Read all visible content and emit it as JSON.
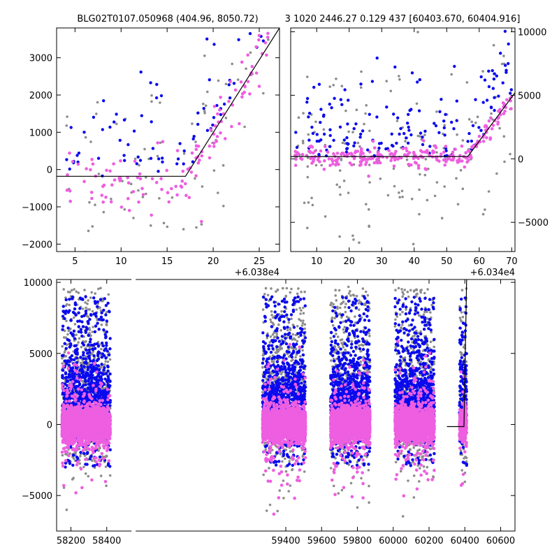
{
  "figure": {
    "title_left": "BLG02T0107.050968 (404.96, 8050.72)",
    "title_right": "3 1020 2446.27 0.129 437 [60403.670, 60404.916]"
  },
  "colors": {
    "grey": "#8c8c8c",
    "blue": "#0a0aee",
    "magenta": "#ee5ee0",
    "fit": "#000000"
  },
  "chart_data": [
    {
      "id": "top-left",
      "type": "scatter",
      "x_offset_label": "+6.038e4",
      "xlim": [
        3,
        27.2
      ],
      "ylim": [
        -2200,
        3800
      ],
      "xticks": [
        5,
        10,
        15,
        20,
        25
      ],
      "yticks": [
        -2000,
        -1000,
        0,
        1000,
        2000,
        3000
      ],
      "fit_line": {
        "x": [
          3,
          17,
          27.2
        ],
        "y": [
          -180,
          -180,
          3800
        ]
      }
    },
    {
      "id": "top-right",
      "type": "scatter",
      "x_offset_label": "+6.034e4",
      "xlim": [
        2,
        71
      ],
      "ylim": [
        -7300,
        10300
      ],
      "xticks": [
        10,
        20,
        30,
        40,
        50,
        60,
        70
      ],
      "yticks": [
        -5000,
        0,
        5000,
        10000
      ],
      "yaxis_side": "right",
      "fit_line": {
        "x": [
          2,
          56.5,
          71
        ],
        "y": [
          180,
          180,
          5200
        ]
      }
    },
    {
      "id": "bottom",
      "type": "scatter",
      "xlim": [
        58120,
        60680
      ],
      "ylim": [
        -7500,
        10200
      ],
      "xticks": [
        58200,
        58400,
        59400,
        59600,
        59800,
        60000,
        60200,
        60400,
        60600
      ],
      "yticks": [
        -5000,
        0,
        5000,
        10000
      ],
      "axis_break_at_x": 58550,
      "seasons": [
        {
          "x_range": [
            58150,
            58420
          ]
        },
        {
          "x_range": [
            59270,
            59510
          ]
        },
        {
          "x_range": [
            59650,
            59870
          ]
        },
        {
          "x_range": [
            60010,
            60230
          ]
        },
        {
          "x_range": [
            60370,
            60410
          ]
        }
      ],
      "fit_line": {
        "x": [
          60300,
          60395,
          60410
        ],
        "y": [
          -150,
          -150,
          10200
        ]
      }
    }
  ]
}
